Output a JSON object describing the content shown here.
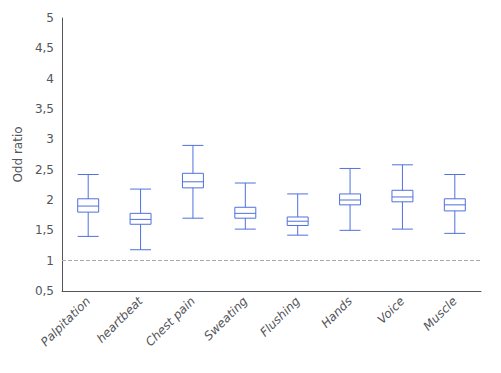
{
  "chart_data": {
    "type": "boxplot",
    "categories": [
      "Palpitation",
      "heartbeat",
      "Chest pain",
      "Sweating",
      "Flushing",
      "Hands",
      "Voice",
      "Muscle"
    ],
    "values": [
      1.9,
      1.68,
      2.3,
      1.78,
      1.65,
      2.0,
      2.05,
      1.92
    ],
    "q1": [
      1.8,
      1.6,
      2.2,
      1.7,
      1.58,
      1.92,
      1.97,
      1.82
    ],
    "q3": [
      2.02,
      1.78,
      2.44,
      1.88,
      1.72,
      2.1,
      2.16,
      2.02
    ],
    "whisker_low": [
      1.4,
      1.18,
      1.7,
      1.52,
      1.42,
      1.5,
      1.52,
      1.45
    ],
    "whisker_high": [
      2.42,
      2.18,
      2.9,
      2.28,
      2.1,
      2.52,
      2.58,
      2.42
    ],
    "reference_line": 1.0,
    "ylabel": "Odd ratio",
    "ylim": [
      0.5,
      5.0
    ],
    "yticks": [
      {
        "value": 0.5,
        "label": "0,5"
      },
      1,
      {
        "value": 1.5,
        "label": "1,5"
      },
      2,
      {
        "value": 2.5,
        "label": "2,5"
      },
      3,
      {
        "value": 3.5,
        "label": "3,5"
      },
      4,
      {
        "value": 4.5,
        "label": "4,5"
      },
      5
    ],
    "grid": false
  }
}
